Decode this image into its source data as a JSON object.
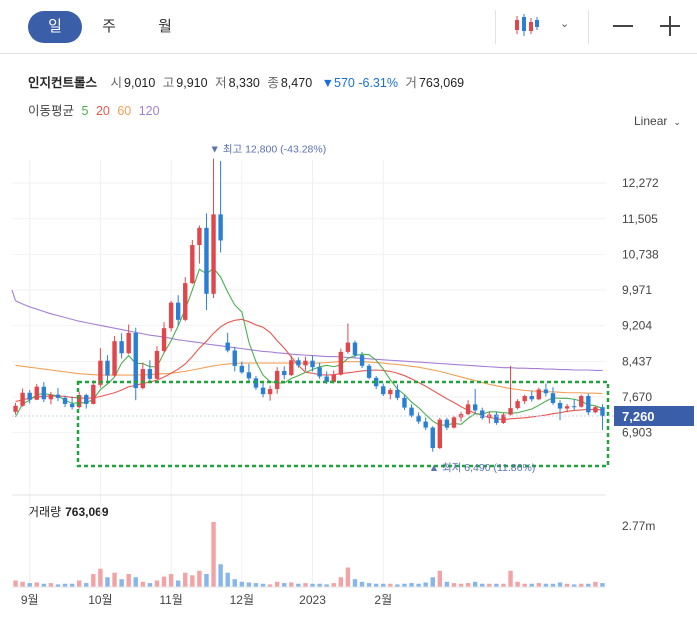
{
  "toolbar": {
    "periods": [
      {
        "label": "일",
        "active": true
      },
      {
        "label": "주",
        "active": false
      },
      {
        "label": "월",
        "active": false
      }
    ],
    "chart_type_icon": "candlestick-icon",
    "dropdown_icon": "chevron-down-icon",
    "zoom_out_icon": "minus-icon",
    "zoom_in_icon": "plus-icon"
  },
  "quote": {
    "name": "인지컨트롤스",
    "open_label": "시",
    "open": "9,010",
    "high_label": "고",
    "high": "9,910",
    "low_label": "저",
    "low": "8,330",
    "close_label": "종",
    "close": "8,470",
    "change": "▼570 -6.31%",
    "volume_label": "거",
    "volume": "763,069"
  },
  "moving_average": {
    "label": "이동평균",
    "periods": [
      {
        "value": "5",
        "color": "#4caf50"
      },
      {
        "value": "20",
        "color": "#e8574f"
      },
      {
        "value": "60",
        "color": "#f0a058"
      },
      {
        "value": "120",
        "color": "#a57fd6"
      }
    ]
  },
  "scale": {
    "label": "Linear",
    "icon": "chevron-down-icon"
  },
  "volume_panel": {
    "label": "거래량",
    "value": "763,069"
  },
  "colors": {
    "up": "#e0474c",
    "down": "#2a7fd4",
    "current_badge": "#3b5ea8",
    "highlight_box": "#1fa33a"
  },
  "chart_data": {
    "type": "candlestick",
    "y_ticks": [
      "12,272",
      "11,505",
      "10,738",
      "9,971",
      "9,204",
      "8,437",
      "7,670",
      "6,903"
    ],
    "y_tick_values": [
      12272,
      11505,
      10738,
      9971,
      9204,
      8437,
      7670,
      6903
    ],
    "x_labels": [
      "9월",
      "10월",
      "11월",
      "12월",
      "2023",
      "2월"
    ],
    "current_price": "7,260",
    "max_annotation": "최고 12,800 (-43.28%)",
    "min_annotation": "최저 6,490 (11.86%)",
    "volume_axis_tick": "2.77m",
    "candles": [
      [
        7350,
        7540,
        7290,
        7480
      ],
      [
        7480,
        7850,
        7460,
        7760
      ],
      [
        7760,
        7820,
        7530,
        7610
      ],
      [
        7610,
        7950,
        7600,
        7890
      ],
      [
        7890,
        7990,
        7560,
        7620
      ],
      [
        7620,
        7780,
        7510,
        7720
      ],
      [
        7720,
        7860,
        7580,
        7650
      ],
      [
        7650,
        7700,
        7450,
        7520
      ],
      [
        7520,
        7680,
        7400,
        7450
      ],
      [
        7450,
        7780,
        7420,
        7710
      ],
      [
        7710,
        7740,
        7420,
        7520
      ],
      [
        7520,
        8030,
        7510,
        7930
      ],
      [
        7930,
        8720,
        7870,
        8450
      ],
      [
        8450,
        8570,
        8000,
        8130
      ],
      [
        8130,
        8980,
        8100,
        8870
      ],
      [
        8870,
        9040,
        8500,
        8610
      ],
      [
        8610,
        9230,
        8590,
        9050
      ],
      [
        9050,
        9160,
        7600,
        7860
      ],
      [
        7860,
        8410,
        7830,
        8270
      ],
      [
        8270,
        8460,
        7980,
        8060
      ],
      [
        8060,
        8760,
        8050,
        8660
      ],
      [
        8660,
        9280,
        8630,
        9150
      ],
      [
        9150,
        9740,
        9080,
        9700
      ],
      [
        9700,
        9860,
        9210,
        9330
      ],
      [
        9330,
        10250,
        9300,
        10120
      ],
      [
        10120,
        11050,
        10100,
        10940
      ],
      [
        10940,
        11360,
        10540,
        11310
      ],
      [
        11310,
        11620,
        9540,
        9890
      ],
      [
        9890,
        12800,
        9800,
        11600
      ],
      [
        11600,
        12750,
        10780,
        11040
      ],
      [
        8840,
        9050,
        8630,
        8670
      ],
      [
        8670,
        8750,
        8220,
        8340
      ],
      [
        8340,
        8430,
        8170,
        8200
      ],
      [
        8200,
        8380,
        8010,
        8070
      ],
      [
        8070,
        8120,
        7820,
        7870
      ],
      [
        7870,
        7970,
        7660,
        7730
      ],
      [
        7730,
        7910,
        7590,
        7840
      ],
      [
        7840,
        8310,
        7740,
        8230
      ],
      [
        8230,
        8330,
        8050,
        8140
      ],
      [
        8140,
        8560,
        8120,
        8460
      ],
      [
        8460,
        8520,
        8300,
        8350
      ],
      [
        8350,
        8540,
        8230,
        8450
      ],
      [
        8450,
        8560,
        8220,
        8310
      ],
      [
        8310,
        8410,
        8060,
        8110
      ],
      [
        8110,
        8220,
        7950,
        7990
      ],
      [
        7990,
        8240,
        7960,
        8150
      ],
      [
        8150,
        8710,
        8130,
        8640
      ],
      [
        8640,
        9250,
        8600,
        8840
      ],
      [
        8840,
        8880,
        8520,
        8570
      ],
      [
        8570,
        8640,
        8290,
        8340
      ],
      [
        8340,
        8380,
        8050,
        8080
      ],
      [
        8080,
        8120,
        7840,
        7900
      ],
      [
        7900,
        7960,
        7690,
        7730
      ],
      [
        7730,
        7860,
        7620,
        7820
      ],
      [
        7820,
        7940,
        7600,
        7650
      ],
      [
        7650,
        7720,
        7390,
        7440
      ],
      [
        7440,
        7510,
        7230,
        7270
      ],
      [
        7270,
        7340,
        7090,
        7140
      ],
      [
        7140,
        7230,
        6960,
        7010
      ],
      [
        7010,
        7040,
        6490,
        6570
      ],
      [
        6570,
        7220,
        6550,
        7180
      ],
      [
        7180,
        7220,
        6960,
        7010
      ],
      [
        7010,
        7260,
        6990,
        7230
      ],
      [
        7230,
        7350,
        7140,
        7300
      ],
      [
        7300,
        7600,
        7280,
        7510
      ],
      [
        7510,
        7840,
        7310,
        7380
      ],
      [
        7380,
        7440,
        7180,
        7220
      ],
      [
        7220,
        7350,
        7100,
        7290
      ],
      [
        7290,
        7350,
        7070,
        7110
      ],
      [
        7110,
        7320,
        7090,
        7290
      ],
      [
        7290,
        8340,
        7270,
        7430
      ],
      [
        7430,
        7620,
        7400,
        7580
      ],
      [
        7580,
        7720,
        7520,
        7690
      ],
      [
        7690,
        7800,
        7570,
        7620
      ],
      [
        7620,
        7870,
        7600,
        7830
      ],
      [
        7830,
        7960,
        7680,
        7750
      ],
      [
        7750,
        7880,
        7500,
        7540
      ],
      [
        7540,
        7600,
        7170,
        7420
      ],
      [
        7420,
        7520,
        7340,
        7470
      ],
      [
        7470,
        7620,
        7390,
        7460
      ],
      [
        7460,
        7720,
        7440,
        7690
      ],
      [
        7690,
        7740,
        7280,
        7340
      ],
      [
        7340,
        7480,
        7320,
        7450
      ],
      [
        7450,
        7510,
        6960,
        7260
      ]
    ],
    "ma5": [
      7240,
      7520,
      7600,
      7720,
      7740,
      7720,
      7690,
      7600,
      7530,
      7550,
      7540,
      7620,
      7830,
      7950,
      8100,
      8400,
      8560,
      8390,
      8390,
      8320,
      8320,
      8620,
      8880,
      9200,
      9560,
      9970,
      10420,
      10320,
      10440,
      10250,
      9930,
      9650,
      9500,
      8850,
      8430,
      8140,
      8000,
      7970,
      7970,
      8070,
      8130,
      8200,
      8260,
      8320,
      8350,
      8320,
      8360,
      8500,
      8560,
      8590,
      8580,
      8460,
      8270,
      8040,
      7840,
      7720,
      7560,
      7440,
      7290,
      7150,
      7060,
      7070,
      7100,
      7080,
      7210,
      7310,
      7300,
      7350,
      7350,
      7330,
      7320,
      7330,
      7370,
      7410,
      7490,
      7580,
      7650,
      7640,
      7640,
      7620,
      7580,
      7500,
      7480,
      7420
    ],
    "ma20": [
      7570,
      7610,
      7640,
      7670,
      7680,
      7690,
      7690,
      7680,
      7660,
      7650,
      7640,
      7650,
      7680,
      7720,
      7760,
      7820,
      7890,
      7920,
      7960,
      7990,
      8030,
      8100,
      8180,
      8270,
      8380,
      8540,
      8720,
      8870,
      9040,
      9180,
      9270,
      9320,
      9340,
      9290,
      9220,
      9170,
      9060,
      8880,
      8720,
      8530,
      8350,
      8200,
      8180,
      8150,
      8140,
      8150,
      8170,
      8190,
      8210,
      8230,
      8240,
      8250,
      8240,
      8220,
      8180,
      8130,
      8060,
      7980,
      7900,
      7810,
      7720,
      7630,
      7550,
      7460,
      7380,
      7320,
      7270,
      7230,
      7200,
      7180,
      7200,
      7210,
      7220,
      7240,
      7260,
      7280,
      7310,
      7330,
      7360,
      7380,
      7390,
      7400,
      7400,
      7390
    ],
    "ma60": [
      8350,
      8330,
      8310,
      8290,
      8270,
      8250,
      8230,
      8210,
      8190,
      8170,
      8160,
      8150,
      8140,
      8140,
      8140,
      8140,
      8140,
      8140,
      8150,
      8150,
      8160,
      8170,
      8180,
      8200,
      8220,
      8250,
      8280,
      8310,
      8340,
      8360,
      8380,
      8390,
      8400,
      8400,
      8400,
      8400,
      8400,
      8400,
      8400,
      8400,
      8400,
      8400,
      8400,
      8400,
      8410,
      8420,
      8430,
      8430,
      8430,
      8430,
      8420,
      8410,
      8400,
      8380,
      8370,
      8350,
      8330,
      8310,
      8280,
      8250,
      8220,
      8180,
      8140,
      8100,
      8060,
      8020,
      7980,
      7940,
      7910,
      7880,
      7850,
      7830,
      7810,
      7800,
      7790,
      7780,
      7780,
      7770,
      7760,
      7760,
      7760,
      7750,
      7750,
      7740
    ],
    "ma120": [
      9740,
      9670,
      9610,
      9560,
      9510,
      9460,
      9420,
      9380,
      9340,
      9300,
      9270,
      9240,
      9210,
      9180,
      9150,
      9120,
      9090,
      9060,
      9030,
      9000,
      8980,
      8960,
      8930,
      8900,
      8880,
      8860,
      8840,
      8810,
      8790,
      8770,
      8750,
      8730,
      8710,
      8690,
      8670,
      8650,
      8640,
      8620,
      8610,
      8590,
      8580,
      8570,
      8560,
      8550,
      8540,
      8540,
      8530,
      8520,
      8510,
      8500,
      8490,
      8480,
      8470,
      8460,
      8450,
      8440,
      8430,
      8420,
      8410,
      8400,
      8390,
      8380,
      8370,
      8360,
      8350,
      8340,
      8330,
      8320,
      8310,
      8300,
      8300,
      8290,
      8290,
      8280,
      8280,
      8270,
      8270,
      8260,
      8260,
      8250,
      8250,
      8250,
      8240,
      8240
    ],
    "volumes": [
      0.1,
      0.08,
      0.06,
      0.07,
      0.05,
      0.06,
      0.04,
      0.05,
      0.05,
      0.1,
      0.06,
      0.2,
      0.28,
      0.15,
      0.22,
      0.12,
      0.2,
      0.15,
      0.08,
      0.06,
      0.1,
      0.16,
      0.2,
      0.1,
      0.22,
      0.18,
      0.25,
      0.2,
      1.0,
      0.35,
      0.22,
      0.12,
      0.08,
      0.07,
      0.06,
      0.05,
      0.04,
      0.08,
      0.06,
      0.07,
      0.05,
      0.06,
      0.05,
      0.05,
      0.04,
      0.06,
      0.15,
      0.3,
      0.12,
      0.08,
      0.06,
      0.05,
      0.05,
      0.05,
      0.04,
      0.05,
      0.06,
      0.05,
      0.07,
      0.15,
      0.25,
      0.08,
      0.06,
      0.05,
      0.06,
      0.08,
      0.05,
      0.05,
      0.05,
      0.05,
      0.25,
      0.08,
      0.05,
      0.05,
      0.06,
      0.05,
      0.05,
      0.07,
      0.05,
      0.04,
      0.05,
      0.05,
      0.08,
      0.06
    ]
  }
}
